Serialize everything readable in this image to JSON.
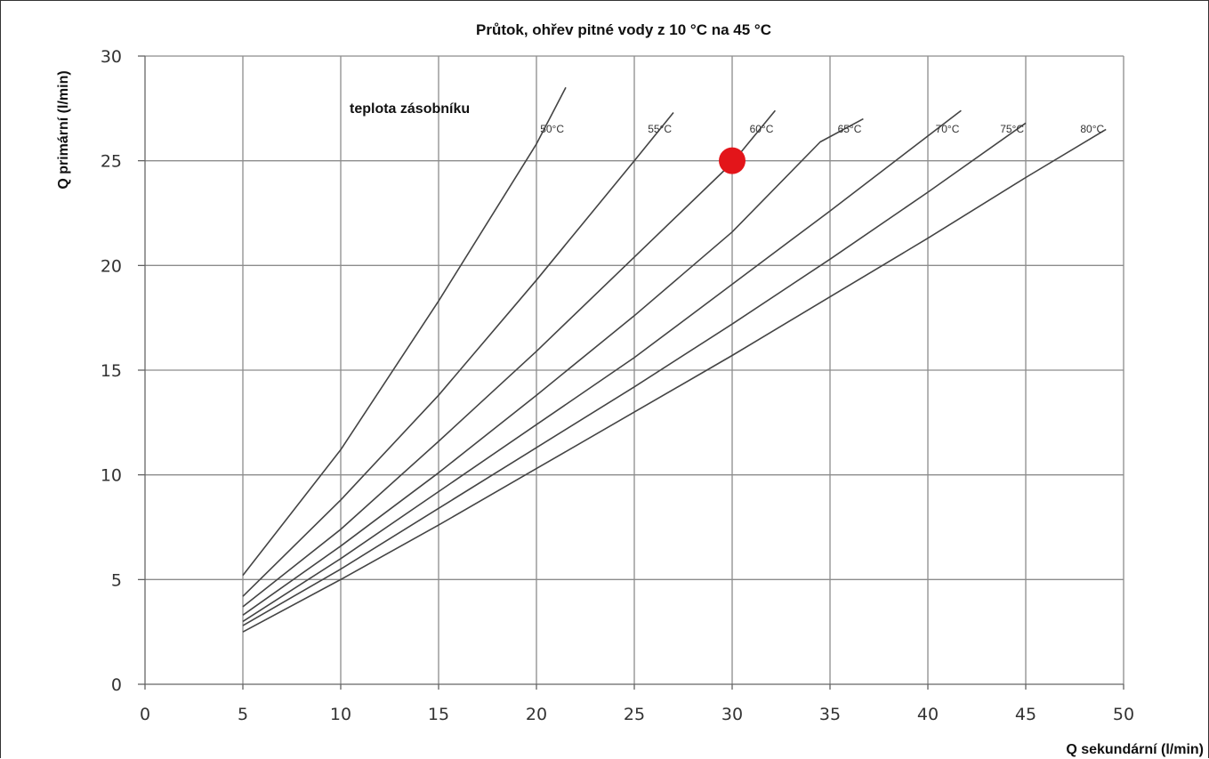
{
  "chart_data": {
    "type": "line",
    "title": "Průtok, ohřev pitné vody z 10 °C na 45 °C",
    "xlabel": "Q sekundární (l/min)",
    "ylabel": "Q primární (l/min)",
    "xlim": [
      0,
      50
    ],
    "ylim": [
      0,
      30
    ],
    "x_ticks": [
      "0",
      "5",
      "10",
      "15",
      "20",
      "25",
      "30",
      "35",
      "40",
      "45",
      "50"
    ],
    "y_ticks": [
      "0",
      "5",
      "10",
      "15",
      "20",
      "25",
      "30"
    ],
    "grid": true,
    "annotation": "teplota zásobníku",
    "series": [
      {
        "name": "50°C",
        "points": [
          [
            5,
            5.2
          ],
          [
            10,
            11.2
          ],
          [
            15,
            18.3
          ],
          [
            20,
            25.8
          ],
          [
            21.5,
            28.5
          ]
        ]
      },
      {
        "name": "55°C",
        "points": [
          [
            5,
            4.2
          ],
          [
            10,
            8.8
          ],
          [
            15,
            13.8
          ],
          [
            20,
            19.3
          ],
          [
            25,
            25.0
          ],
          [
            27,
            27.3
          ]
        ]
      },
      {
        "name": "60°C",
        "points": [
          [
            5,
            3.7
          ],
          [
            10,
            7.4
          ],
          [
            15,
            11.6
          ],
          [
            20,
            15.9
          ],
          [
            25,
            20.4
          ],
          [
            30,
            24.9
          ],
          [
            32.2,
            27.4
          ]
        ]
      },
      {
        "name": "65°C",
        "points": [
          [
            5,
            3.3
          ],
          [
            10,
            6.6
          ],
          [
            15,
            10.1
          ],
          [
            20,
            13.8
          ],
          [
            25,
            17.6
          ],
          [
            30,
            21.6
          ],
          [
            34.5,
            25.9
          ],
          [
            36.7,
            27.0
          ]
        ]
      },
      {
        "name": "70°C",
        "points": [
          [
            5,
            3.0
          ],
          [
            10,
            6.0
          ],
          [
            15,
            9.2
          ],
          [
            20,
            12.4
          ],
          [
            25,
            15.6
          ],
          [
            30,
            19.1
          ],
          [
            35,
            22.6
          ],
          [
            41.7,
            27.4
          ]
        ]
      },
      {
        "name": "75°C",
        "points": [
          [
            5,
            2.8
          ],
          [
            10,
            5.5
          ],
          [
            15,
            8.4
          ],
          [
            20,
            11.3
          ],
          [
            25,
            14.2
          ],
          [
            30,
            17.2
          ],
          [
            35,
            20.3
          ],
          [
            40,
            23.5
          ],
          [
            45,
            26.8
          ]
        ]
      },
      {
        "name": "80°C",
        "points": [
          [
            5,
            2.5
          ],
          [
            10,
            5.0
          ],
          [
            15,
            7.6
          ],
          [
            20,
            10.3
          ],
          [
            25,
            13.0
          ],
          [
            30,
            15.7
          ],
          [
            35,
            18.5
          ],
          [
            40,
            21.3
          ],
          [
            45,
            24.2
          ],
          [
            49.1,
            26.5
          ]
        ]
      }
    ],
    "series_color": "#444444",
    "highlight_point": {
      "x": 30,
      "y": 25,
      "color": "#e3151a"
    }
  }
}
